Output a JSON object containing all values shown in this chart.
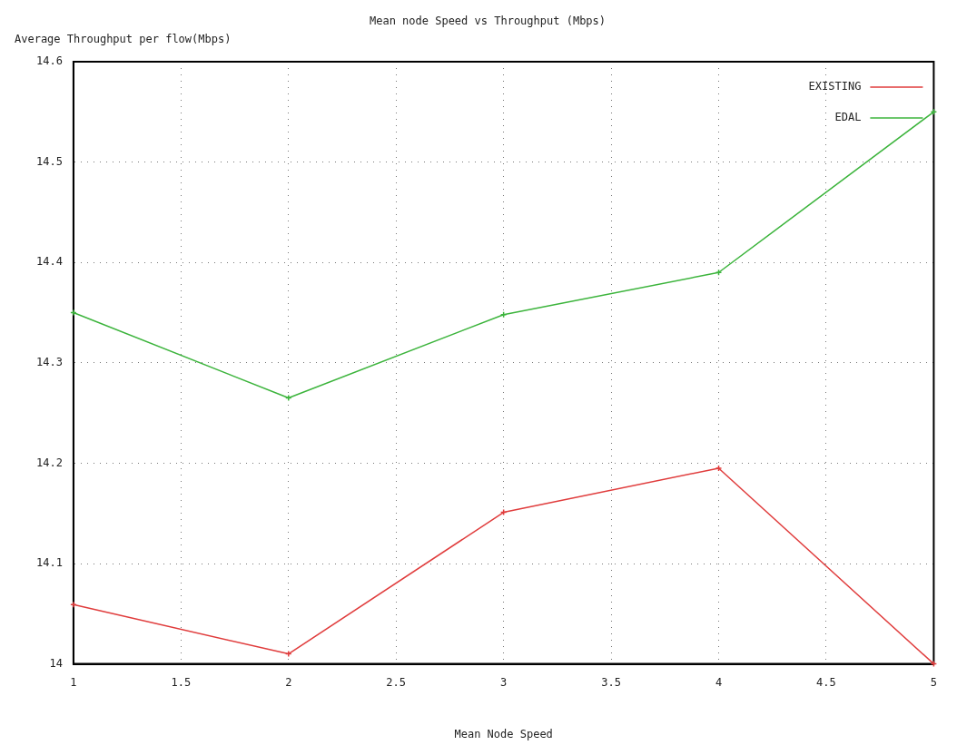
{
  "chart_data": {
    "type": "line",
    "title": "Mean node Speed vs Throughput (Mbps)",
    "xlabel": "Mean Node Speed",
    "ylabel": "Average Throughput per flow(Mbps)",
    "x": [
      1,
      2,
      3,
      4,
      5
    ],
    "series": [
      {
        "name": "EXISTING",
        "color": "#e03c3c",
        "values": [
          14.059,
          14.01,
          14.151,
          14.195,
          14.0
        ]
      },
      {
        "name": "EDAL",
        "color": "#3cb43c",
        "values": [
          14.35,
          14.265,
          14.348,
          14.39,
          14.55
        ]
      }
    ],
    "xlim": [
      1,
      5
    ],
    "xticks": [
      1,
      1.5,
      2,
      2.5,
      3,
      3.5,
      4,
      4.5,
      5
    ],
    "ylim": [
      14,
      14.6
    ],
    "yticks": [
      14,
      14.1,
      14.2,
      14.3,
      14.4,
      14.5,
      14.6
    ],
    "grid": true,
    "legend": "top right",
    "marker": "cross",
    "line_style": "solid"
  }
}
